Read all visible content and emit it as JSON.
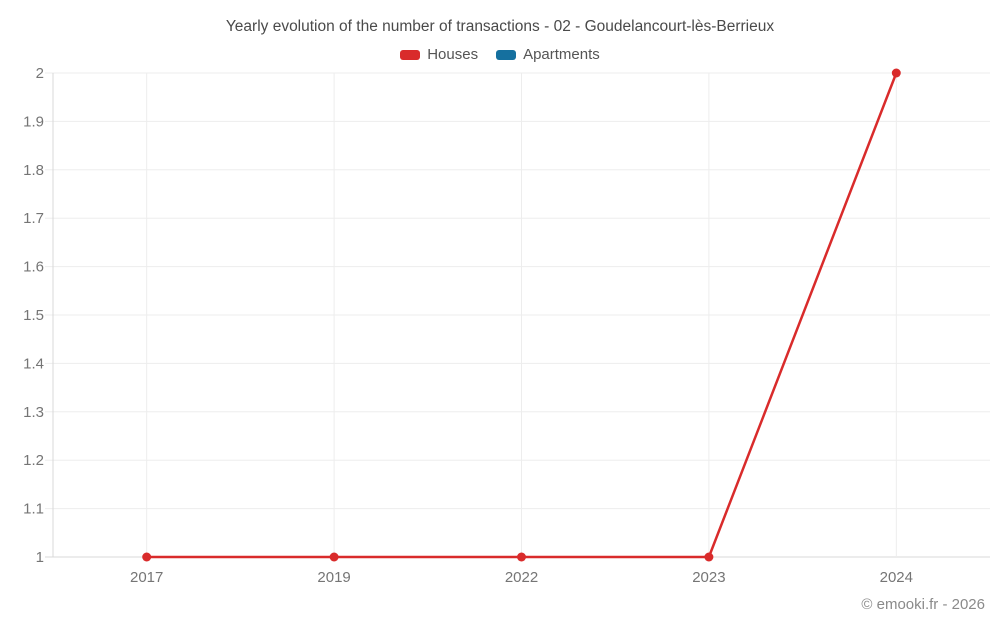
{
  "chart": {
    "credit": "© emooki.fr - 2026",
    "colors": {
      "houses": "#d92b2b",
      "apartments": "#15709f",
      "grid": "#ededed",
      "axis": "#d8d8d8",
      "tick_text": "#757575",
      "title_text": "#4a4a4a",
      "credit_text": "#8a8a8a",
      "background": "#ffffff"
    }
  },
  "chart_data": {
    "type": "line",
    "title": "Yearly evolution of the number of transactions - 02 - Goudelancourt-lès-Berrieux",
    "xlabel": "",
    "ylabel": "",
    "categories": [
      "2017",
      "2019",
      "2022",
      "2023",
      "2024"
    ],
    "series": [
      {
        "name": "Houses",
        "color": "#d92b2b",
        "values": [
          1,
          1,
          1,
          1,
          2
        ]
      },
      {
        "name": "Apartments",
        "color": "#15709f",
        "values": []
      }
    ],
    "ylim": [
      1,
      2
    ],
    "ytick_step": 0.1,
    "ytick_labels": [
      "1",
      "1.1",
      "1.2",
      "1.3",
      "1.4",
      "1.5",
      "1.6",
      "1.7",
      "1.8",
      "1.9",
      "2"
    ],
    "grid": true,
    "legend_position": "top"
  }
}
